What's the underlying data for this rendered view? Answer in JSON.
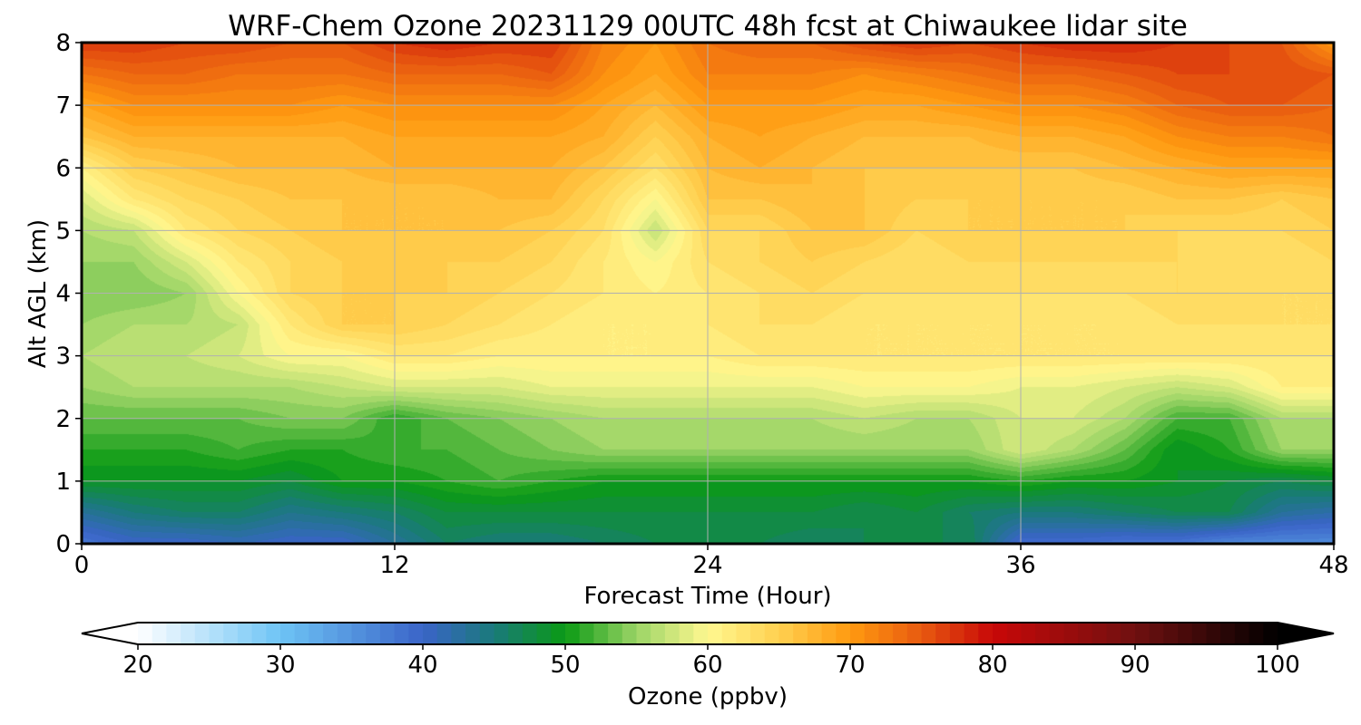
{
  "chart_data": {
    "type": "heatmap",
    "subtype": "filled-contour time-height cross-section",
    "title": "WRF-Chem Ozone  20231129 00UTC 48h fcst at Chiwaukee lidar site",
    "xlabel": "Forecast Time (Hour)",
    "ylabel": "Alt AGL (km)",
    "xlim": [
      0,
      48
    ],
    "ylim": [
      0,
      8
    ],
    "xticks": [
      "0",
      "12",
      "24",
      "36",
      "48"
    ],
    "yticks": [
      "0",
      "1",
      "2",
      "3",
      "4",
      "5",
      "6",
      "7",
      "8"
    ],
    "grid": true,
    "x_hours": [
      0,
      2,
      4,
      6,
      8,
      10,
      12,
      14,
      16,
      18,
      20,
      22,
      24,
      26,
      28,
      30,
      32,
      34,
      36,
      38,
      40,
      42,
      44,
      46,
      48
    ],
    "y_km": [
      0,
      0.5,
      1,
      1.5,
      2,
      2.5,
      3,
      3.5,
      4,
      4.5,
      5,
      5.5,
      6,
      6.5,
      7,
      7.5,
      8
    ],
    "ozone_ppbv": [
      [
        38,
        40,
        40,
        41,
        40,
        40,
        43,
        46,
        45,
        45,
        46,
        47,
        47,
        47,
        46,
        47,
        47,
        47,
        39,
        39,
        38,
        38,
        36,
        36,
        36
      ],
      [
        43,
        45,
        46,
        46,
        44,
        45,
        46,
        48,
        48,
        48,
        48,
        48,
        48,
        48,
        48,
        47,
        48,
        46,
        45,
        45,
        46,
        47,
        47,
        43,
        42
      ],
      [
        49,
        49,
        49,
        49,
        48,
        50,
        50,
        51,
        52,
        51,
        50,
        50,
        50,
        50,
        50,
        50,
        50,
        50,
        51,
        50,
        50,
        49,
        48,
        47,
        48
      ],
      [
        51,
        51,
        51,
        52,
        51,
        51,
        52,
        52,
        53,
        54,
        55,
        55,
        55,
        55,
        55,
        55,
        55,
        55,
        58,
        56,
        53,
        49,
        51,
        55,
        55
      ],
      [
        53,
        53,
        53,
        53,
        54,
        54,
        51,
        53,
        54,
        55,
        56,
        56,
        56,
        56,
        56,
        57,
        56,
        56,
        58,
        58,
        56,
        52,
        52,
        56,
        56
      ],
      [
        55,
        56,
        56,
        56,
        56,
        57,
        58,
        58,
        58,
        59,
        59,
        59,
        59,
        59,
        59,
        60,
        60,
        60,
        59,
        59,
        58,
        57,
        58,
        61,
        61
      ],
      [
        56,
        57,
        57,
        58,
        60,
        60,
        62,
        62,
        61,
        61,
        61,
        61,
        61,
        62,
        62,
        62,
        62,
        62,
        62,
        62,
        62,
        62,
        62,
        62,
        62
      ],
      [
        55,
        56,
        56,
        57,
        62,
        65,
        65,
        64,
        63,
        62,
        61,
        61,
        62,
        63,
        63,
        62,
        62,
        62,
        62,
        62,
        62,
        63,
        63,
        63,
        63
      ],
      [
        54,
        54,
        55,
        60,
        64,
        65,
        65,
        65,
        64,
        63,
        62,
        61,
        62,
        63,
        64,
        63,
        63,
        63,
        63,
        63,
        63,
        64,
        64,
        63,
        63
      ],
      [
        55,
        55,
        58,
        62,
        64,
        65,
        66,
        65,
        65,
        64,
        62,
        60,
        63,
        64,
        65,
        64,
        63,
        64,
        64,
        64,
        64,
        64,
        63,
        63,
        64
      ],
      [
        56,
        57,
        62,
        64,
        65,
        66,
        66,
        66,
        66,
        65,
        63,
        57,
        64,
        64,
        66,
        66,
        64,
        65,
        65,
        65,
        65,
        64,
        64,
        64,
        65
      ],
      [
        58,
        62,
        64,
        65,
        66,
        66,
        66,
        66,
        67,
        67,
        64,
        60,
        66,
        66,
        67,
        66,
        65,
        65,
        65,
        65,
        65,
        66,
        66,
        65,
        66
      ],
      [
        61,
        65,
        66,
        67,
        67,
        67,
        68,
        68,
        68,
        68,
        66,
        63,
        67,
        68,
        67,
        66,
        66,
        66,
        66,
        66,
        67,
        68,
        69,
        69,
        69
      ],
      [
        66,
        68,
        68,
        68,
        68,
        68,
        69,
        69,
        69,
        69,
        68,
        65,
        68,
        69,
        68,
        67,
        67,
        67,
        68,
        68,
        69,
        71,
        72,
        72,
        73
      ],
      [
        69,
        71,
        71,
        71,
        71,
        70,
        71,
        71,
        71,
        71,
        69,
        67,
        70,
        70,
        70,
        69,
        69,
        70,
        71,
        71,
        72,
        74,
        75,
        75,
        74
      ],
      [
        73,
        74,
        74,
        73,
        73,
        73,
        74,
        74,
        74,
        75,
        71,
        69,
        72,
        72,
        72,
        71,
        72,
        73,
        74,
        74,
        75,
        76,
        76,
        76,
        75
      ],
      [
        77,
        77,
        76,
        76,
        75,
        75,
        77,
        78,
        77,
        77,
        72,
        70,
        73,
        74,
        74,
        76,
        77,
        76,
        77,
        78,
        78,
        77,
        76,
        75,
        70
      ]
    ],
    "colorbar": {
      "label": "Ozone  (ppbv)",
      "min": 20,
      "max": 100,
      "ticks": [
        "20",
        "30",
        "40",
        "50",
        "60",
        "70",
        "80",
        "90",
        "100"
      ],
      "extend": "both",
      "level_step": 1
    },
    "colormap": [
      {
        "v": 20,
        "c": "#ffffff"
      },
      {
        "v": 30,
        "c": "#6ec4f5"
      },
      {
        "v": 40,
        "c": "#3a64c8"
      },
      {
        "v": 45,
        "c": "#1a7a7a"
      },
      {
        "v": 50,
        "c": "#0a9a14"
      },
      {
        "v": 55,
        "c": "#9bd466"
      },
      {
        "v": 60,
        "c": "#fff890"
      },
      {
        "v": 65,
        "c": "#ffd050"
      },
      {
        "v": 70,
        "c": "#ff9a10"
      },
      {
        "v": 75,
        "c": "#e85a10"
      },
      {
        "v": 80,
        "c": "#c80808"
      },
      {
        "v": 90,
        "c": "#701010"
      },
      {
        "v": 100,
        "c": "#000000"
      }
    ]
  }
}
